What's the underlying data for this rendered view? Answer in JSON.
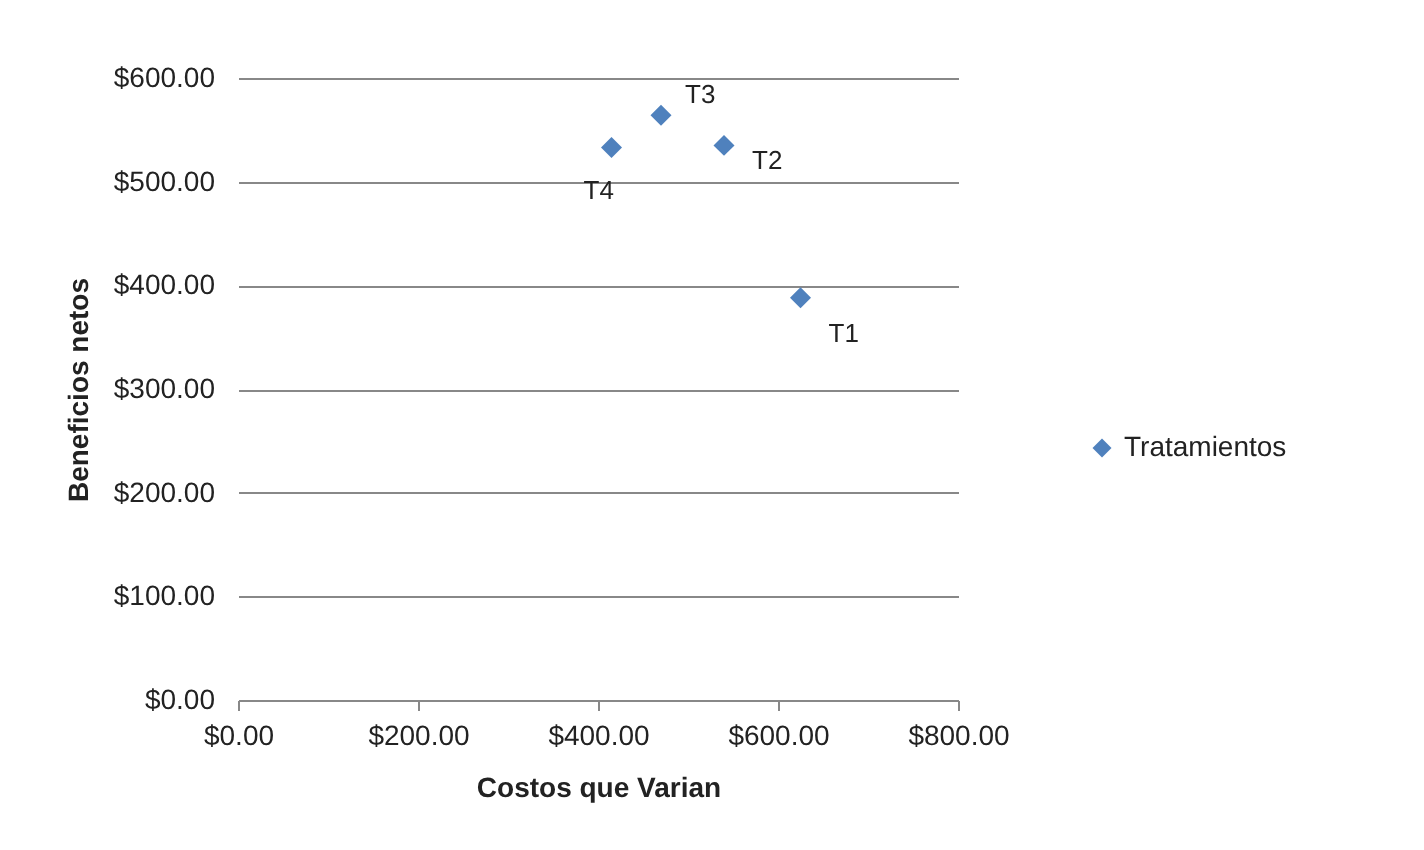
{
  "chart_data": {
    "type": "scatter",
    "xlabel": "Costos que Varian",
    "ylabel": "Beneficios netos",
    "x": [
      625,
      540,
      470,
      415
    ],
    "series": [
      {
        "name": "Tratamientos",
        "color": "#4f81bd",
        "values": [
          388,
          535,
          564,
          533
        ]
      }
    ],
    "annotations": [
      {
        "text": "T1",
        "x": 625,
        "y": 388
      },
      {
        "text": "T2",
        "x": 540,
        "y": 535
      },
      {
        "text": "T3",
        "x": 470,
        "y": 564
      },
      {
        "text": "T4",
        "x": 415,
        "y": 533
      }
    ],
    "xlim": [
      0,
      800
    ],
    "xticks": [
      {
        "value": 0,
        "label": "$0.00"
      },
      {
        "value": 200,
        "label": "$200.00"
      },
      {
        "value": 400,
        "label": "$400.00"
      },
      {
        "value": 600,
        "label": "$600.00"
      },
      {
        "value": 800,
        "label": "$800.00"
      }
    ],
    "ylim": [
      0,
      600
    ],
    "yticks": [
      {
        "value": 0,
        "label": "$0.00"
      },
      {
        "value": 100,
        "label": "$100.00"
      },
      {
        "value": 200,
        "label": "$200.00"
      },
      {
        "value": 300,
        "label": "$300.00"
      },
      {
        "value": 400,
        "label": "$400.00"
      },
      {
        "value": 500,
        "label": "$500.00"
      },
      {
        "value": 600,
        "label": "$600.00"
      }
    ],
    "grid": "y",
    "legend": "right",
    "marker": "diamond"
  }
}
